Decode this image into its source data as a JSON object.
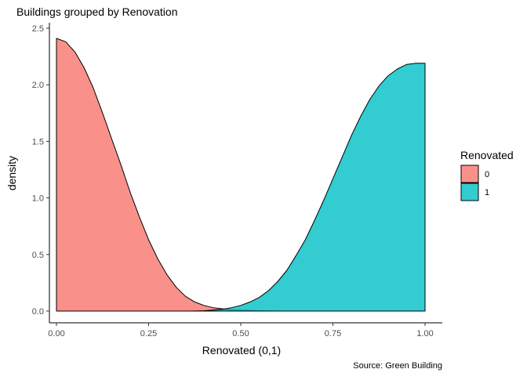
{
  "chart_data": {
    "type": "area",
    "title": "Buildings grouped by Renovation",
    "xlabel": "Renovated (0,1)",
    "ylabel": "density",
    "caption": "Source: Green Building",
    "xlim": [
      0,
      1
    ],
    "ylim": [
      0,
      2.5
    ],
    "x_ticks": [
      0,
      0.25,
      0.5,
      0.75,
      1
    ],
    "x_tick_labels": [
      "0.00",
      "0.25",
      "0.50",
      "0.75",
      "1.00"
    ],
    "y_ticks": [
      0,
      0.5,
      1,
      1.5,
      2,
      2.5
    ],
    "y_tick_labels": [
      "0.0",
      "0.5",
      "1.0",
      "1.5",
      "2.0",
      "2.5"
    ],
    "grid": false,
    "legend": {
      "title": "Renovated",
      "position": "right",
      "entries": [
        "0",
        "1"
      ]
    },
    "series": [
      {
        "name": "0",
        "color": "#F8766D",
        "x": [
          0,
          0.025,
          0.05,
          0.075,
          0.1,
          0.125,
          0.15,
          0.175,
          0.2,
          0.225,
          0.25,
          0.275,
          0.3,
          0.325,
          0.35,
          0.375,
          0.4,
          0.425,
          0.45,
          0.475,
          0.5,
          0.525,
          0.55,
          0.575,
          0.6
        ],
        "values": [
          2.41,
          2.38,
          2.29,
          2.15,
          1.97,
          1.75,
          1.52,
          1.29,
          1.05,
          0.83,
          0.63,
          0.46,
          0.32,
          0.21,
          0.13,
          0.08,
          0.05,
          0.03,
          0.02,
          0.01,
          0.008,
          0.005,
          0.003,
          0.002,
          0.0
        ]
      },
      {
        "name": "1",
        "color": "#00BFC4",
        "x": [
          0.36,
          0.4,
          0.425,
          0.45,
          0.475,
          0.5,
          0.525,
          0.55,
          0.575,
          0.6,
          0.625,
          0.65,
          0.675,
          0.7,
          0.725,
          0.75,
          0.775,
          0.8,
          0.825,
          0.85,
          0.875,
          0.9,
          0.925,
          0.95,
          0.975,
          1.0
        ],
        "values": [
          0.0,
          0.003,
          0.008,
          0.015,
          0.03,
          0.05,
          0.08,
          0.12,
          0.18,
          0.26,
          0.36,
          0.49,
          0.63,
          0.8,
          0.98,
          1.17,
          1.36,
          1.55,
          1.72,
          1.87,
          1.99,
          2.08,
          2.14,
          2.18,
          2.19,
          2.19
        ]
      }
    ]
  }
}
